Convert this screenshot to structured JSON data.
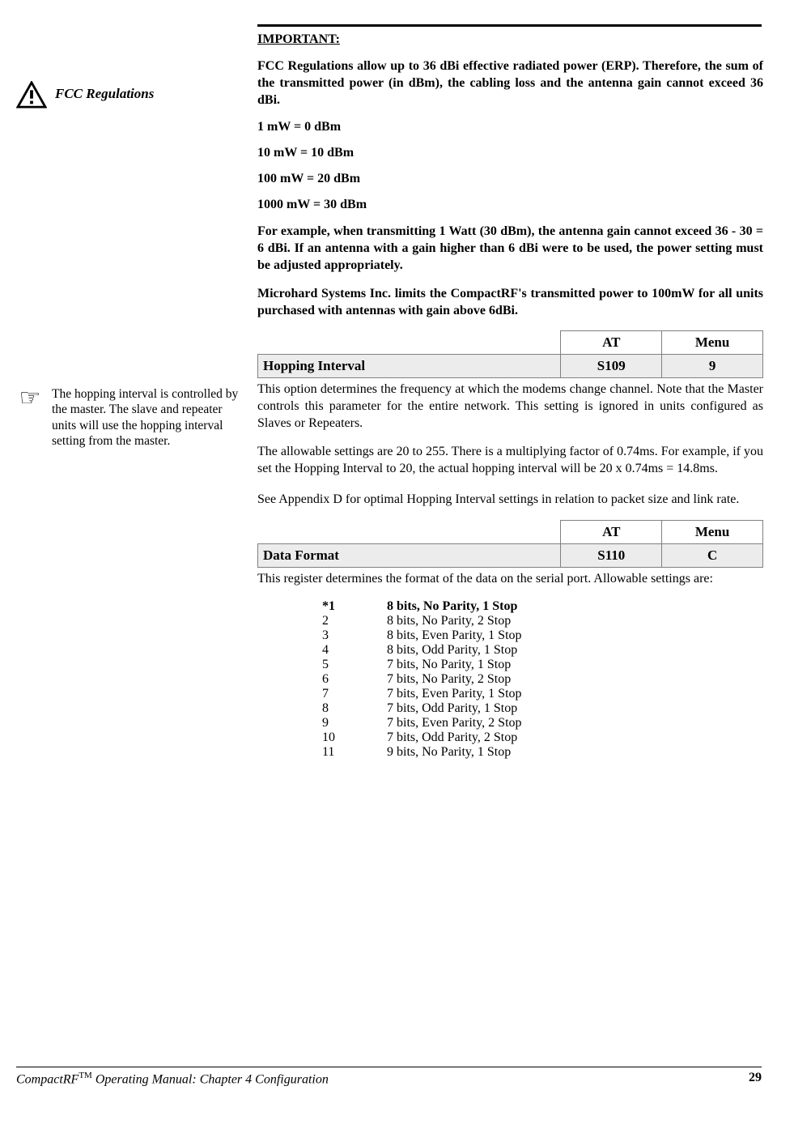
{
  "sidebar": {
    "fcc_label": "FCC Regulations",
    "hopping_note": "The hopping interval is controlled by the master. The slave and repeater units will use the hopping interval setting from the master."
  },
  "important": {
    "heading": "IMPORTANT:",
    "p1": "FCC Regulations allow up to 36 dBi effective radiated power (ERP). Therefore, the sum of the transmitted power (in dBm), the cabling loss and the antenna gain cannot exceed 36 dBi.",
    "lines": [
      "1 mW = 0 dBm",
      "10 mW = 10 dBm",
      "100 mW = 20 dBm",
      "1000 mW = 30 dBm"
    ],
    "p2": "For example, when transmitting 1 Watt (30 dBm), the antenna gain cannot exceed 36 - 30  = 6 dBi.  If an antenna with a gain higher than 6 dBi were to be used, the power setting must be adjusted appropriately.",
    "p3": "Microhard Systems Inc. limits the CompactRF's transmitted power to 100mW for all units purchased with antennas with gain above 6dBi."
  },
  "table_headers": {
    "at": "AT",
    "menu": "Menu"
  },
  "hopping": {
    "label": "Hopping Interval",
    "at": "S109",
    "menu": "9",
    "p1": "This option determines the frequency at which the modems change channel. Note that the Master controls this parameter for the entire network.  This setting is ignored in units configured as Slaves or Repeaters.",
    "p2": "The allowable settings are 20 to 255.  There is a multiplying factor of 0.74ms.  For example, if you set the Hopping Interval to 20, the actual hopping interval will be 20 x 0.74ms = 14.8ms.",
    "p3": "See Appendix D for optimal Hopping Interval settings in relation to packet size and link rate."
  },
  "dataformat": {
    "label": "Data Format",
    "at": "S110",
    "menu": "C",
    "p1": "This register determines the format of the data on the serial port.  Allowable settings are:",
    "options": [
      {
        "key": "*1",
        "val": "8 bits, No Parity, 1 Stop",
        "bold": true
      },
      {
        "key": "2",
        "val": "8 bits, No Parity, 2 Stop",
        "bold": false
      },
      {
        "key": "3",
        "val": "8 bits, Even Parity, 1 Stop",
        "bold": false
      },
      {
        "key": "4",
        "val": "8 bits, Odd Parity, 1 Stop",
        "bold": false
      },
      {
        "key": "5",
        "val": "7 bits, No Parity, 1 Stop",
        "bold": false
      },
      {
        "key": "6",
        "val": "7 bits, No Parity, 2 Stop",
        "bold": false
      },
      {
        "key": "7",
        "val": "7 bits, Even Parity, 1 Stop",
        "bold": false
      },
      {
        "key": "8",
        "val": "7 bits, Odd Parity, 1 Stop",
        "bold": false
      },
      {
        "key": "9",
        "val": "7 bits, Even Parity, 2 Stop",
        "bold": false
      },
      {
        "key": "10",
        "val": "7 bits, Odd Parity, 2 Stop",
        "bold": false
      },
      {
        "key": "11",
        "val": "9 bits, No Parity, 1 Stop",
        "bold": false
      }
    ]
  },
  "footer": {
    "product": "CompactRF",
    "tm": "TM",
    "suffix": " Operating Manual: Chapter 4 Configuration",
    "page": "29"
  }
}
